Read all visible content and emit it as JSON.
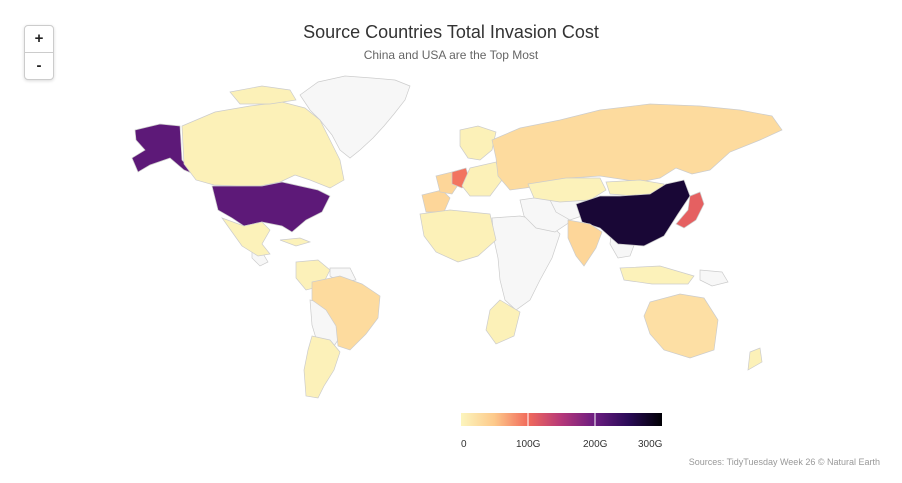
{
  "title": "Source Countries Total Invasion Cost",
  "subtitle": "China and USA are the Top Most",
  "zoom": {
    "in_label": "+",
    "out_label": "-"
  },
  "credits": "Sources: TidyTuesday Week 26 © Natural Earth",
  "colors": {
    "no_data": "#f7f7f7",
    "border": "#cccccc",
    "scale": [
      "#fcf5bd",
      "#fdc98a",
      "#f16a5b",
      "#b53779",
      "#6a1c80",
      "#2a0b57",
      "#000004"
    ]
  },
  "legend": {
    "min": 0,
    "max": 300,
    "unit": "G",
    "ticks": [
      {
        "value": 0,
        "label": "0"
      },
      {
        "value": 100,
        "label": "100G"
      },
      {
        "value": 200,
        "label": "200G"
      },
      {
        "value": 300,
        "label": "300G"
      }
    ]
  },
  "chart_data": {
    "type": "choropleth",
    "title": "Source Countries Total Invasion Cost",
    "subtitle": "China and USA are the Top Most",
    "value_unit": "G",
    "range": [
      0,
      300
    ],
    "regions": [
      {
        "name": "China",
        "value": 270
      },
      {
        "name": "United States",
        "value": 210
      },
      {
        "name": "Alaska (USA)",
        "value": 210
      },
      {
        "name": "Japan",
        "value": 110
      },
      {
        "name": "Germany",
        "value": 95
      },
      {
        "name": "Russia",
        "value": 30
      },
      {
        "name": "India",
        "value": 35
      },
      {
        "name": "Brazil",
        "value": 30
      },
      {
        "name": "Australia",
        "value": 25
      },
      {
        "name": "Spain",
        "value": 35
      },
      {
        "name": "Canada",
        "value": 5
      },
      {
        "name": "Mexico",
        "value": 3
      },
      {
        "name": "Mongolia",
        "value": 2
      },
      {
        "name": "Kazakhstan",
        "value": 3
      },
      {
        "name": "Argentina",
        "value": 4
      },
      {
        "name": "South Africa",
        "value": 5
      }
    ]
  }
}
